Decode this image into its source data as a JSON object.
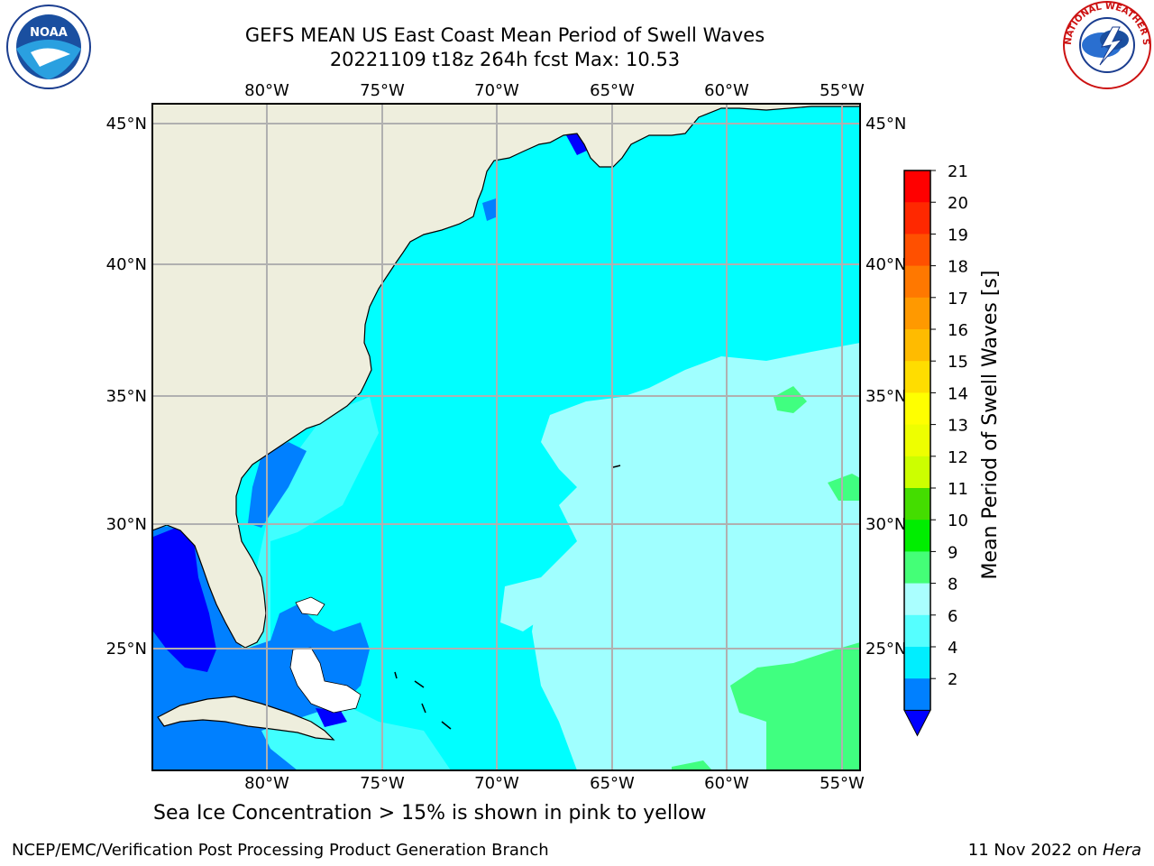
{
  "header": {
    "title": "GEFS MEAN US East Coast Mean Period of Swell Waves",
    "subtitle": "20221109 t18z 264h fcst   Max: 10.53"
  },
  "logos": {
    "left": "noaa-logo",
    "right": "nws-logo",
    "nws_ring_text": "NATIONAL WEATHER SERVICE"
  },
  "map": {
    "lon_labels": [
      "80°W",
      "75°W",
      "70°W",
      "65°W",
      "60°W",
      "55°W"
    ],
    "lat_labels": [
      "45°N",
      "40°N",
      "35°N",
      "30°N",
      "25°N"
    ],
    "colors": {
      "land": "#eeeedd",
      "ocean_4_6": "#00ffff",
      "ocean_6_8": "#40ffff",
      "ocean_8_9": "#a0ffff",
      "ocean_9_10": "#40ff80",
      "ocean_2_4": "#0080ff",
      "ocean_lt2": "#0000ff",
      "grid": "#b0b0b0"
    }
  },
  "colorbar": {
    "label": "Mean Period of Swell Waves [s]",
    "ticks": [
      "21",
      "20",
      "19",
      "18",
      "17",
      "16",
      "15",
      "14",
      "13",
      "12",
      "11",
      "10",
      "9",
      "8",
      "6",
      "4",
      "2"
    ],
    "colors": [
      "#ff0000",
      "#ff2800",
      "#ff5000",
      "#ff7800",
      "#ff9900",
      "#ffbb00",
      "#ffdd00",
      "#ffff00",
      "#eeff00",
      "#ccff00",
      "#44dd00",
      "#00ee00",
      "#44ff77",
      "#aaffff",
      "#55ffff",
      "#00eeff",
      "#0080ff"
    ],
    "underflow_color": "#0000ff"
  },
  "footer": {
    "caption": "Sea Ice Concentration > 15% is shown in pink to yellow",
    "left": "NCEP/EMC/Verification Post Processing Product Generation Branch",
    "date": "11 Nov 2022 on ",
    "machine": "Hera"
  }
}
